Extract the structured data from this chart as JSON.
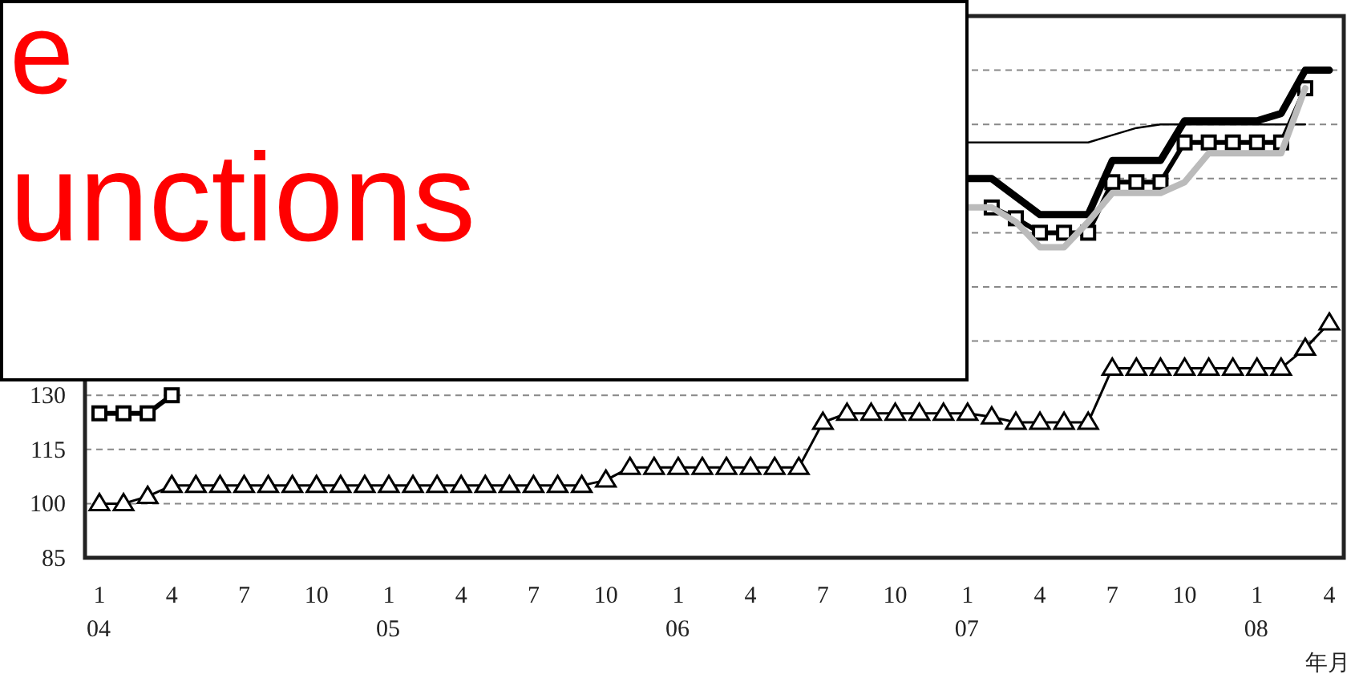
{
  "chart_data": {
    "type": "line",
    "xlabel": "年月",
    "categories": [
      "1\n04",
      null,
      null,
      "4",
      null,
      null,
      "7",
      null,
      null,
      "10",
      null,
      null,
      "1\n05",
      null,
      null,
      "4",
      null,
      null,
      "7",
      null,
      null,
      "10",
      null,
      null,
      "1\n06",
      null,
      null,
      "4",
      null,
      null,
      "7",
      null,
      null,
      "10",
      null,
      null,
      "1\n07",
      null,
      null,
      "4",
      null,
      null,
      "7",
      null,
      null,
      "10",
      null,
      null,
      "1\n08",
      null,
      null,
      "4"
    ],
    "series": [
      {
        "color": "#000000",
        "marker": "square",
        "values": [
          125,
          125,
          125,
          130,
          null,
          null,
          null,
          null,
          null,
          null,
          null,
          null,
          null,
          null,
          null,
          null,
          null,
          null,
          null,
          null,
          null,
          null,
          null,
          null,
          null,
          null,
          null,
          null,
          null,
          null,
          null,
          null,
          null,
          null,
          null,
          null,
          null,
          182,
          179,
          175,
          175,
          175,
          189,
          189,
          189,
          200,
          200,
          200,
          200,
          200,
          215,
          null
        ]
      },
      {
        "color": "#000000",
        "marker": "none",
        "values": [
          null,
          null,
          null,
          null,
          null,
          null,
          null,
          null,
          null,
          null,
          null,
          null,
          null,
          null,
          null,
          null,
          null,
          null,
          null,
          null,
          null,
          null,
          null,
          null,
          null,
          null,
          null,
          null,
          null,
          null,
          null,
          null,
          null,
          null,
          null,
          null,
          190,
          190,
          185,
          180,
          180,
          180,
          195,
          195,
          195,
          206,
          206,
          206,
          206,
          208,
          220,
          220
        ]
      },
      {
        "color": "#000000",
        "marker": "none",
        "values": [
          null,
          null,
          null,
          null,
          null,
          null,
          null,
          null,
          null,
          null,
          null,
          null,
          null,
          null,
          null,
          null,
          null,
          null,
          null,
          null,
          null,
          null,
          null,
          null,
          null,
          null,
          null,
          null,
          null,
          null,
          null,
          null,
          null,
          null,
          null,
          null,
          200,
          200,
          200,
          200,
          200,
          200,
          202,
          204,
          205,
          205,
          205,
          205,
          205,
          205,
          205,
          null
        ]
      },
      {
        "color": "#bbbbbb",
        "marker": "none",
        "values": [
          null,
          null,
          null,
          null,
          null,
          null,
          null,
          null,
          null,
          null,
          null,
          null,
          null,
          null,
          null,
          null,
          null,
          null,
          null,
          null,
          null,
          null,
          null,
          null,
          null,
          null,
          null,
          null,
          null,
          null,
          null,
          null,
          null,
          null,
          null,
          null,
          182,
          182,
          178,
          171,
          171,
          178,
          186,
          186,
          186,
          189,
          197,
          197,
          197,
          197,
          215,
          null
        ]
      },
      {
        "color": "#000000",
        "marker": "triangle",
        "values": [
          100,
          100,
          102,
          105,
          105,
          105,
          105,
          105,
          105,
          105,
          105,
          105,
          105,
          105,
          105,
          105,
          105,
          105,
          105,
          105,
          105,
          106.5,
          110,
          110,
          110,
          110,
          110,
          110,
          110,
          110,
          122.5,
          125,
          125,
          125,
          125,
          125,
          125,
          124,
          122.5,
          122.5,
          122.5,
          122.5,
          137.5,
          137.5,
          137.5,
          137.5,
          137.5,
          137.5,
          137.5,
          137.5,
          143,
          150
        ]
      }
    ],
    "ylim": [
      85,
      235
    ],
    "yticks": [
      85,
      100,
      115,
      130,
      {
        "value": 145,
        "label": null
      },
      {
        "value": 160,
        "label": null
      },
      {
        "value": 175,
        "label": null
      },
      {
        "value": 190,
        "label": null
      },
      {
        "value": 205,
        "label": null
      },
      {
        "value": 220,
        "label": null
      }
    ],
    "grid": "y",
    "line_style": "solid",
    "annotations": [
      "e",
      "unctions"
    ]
  }
}
